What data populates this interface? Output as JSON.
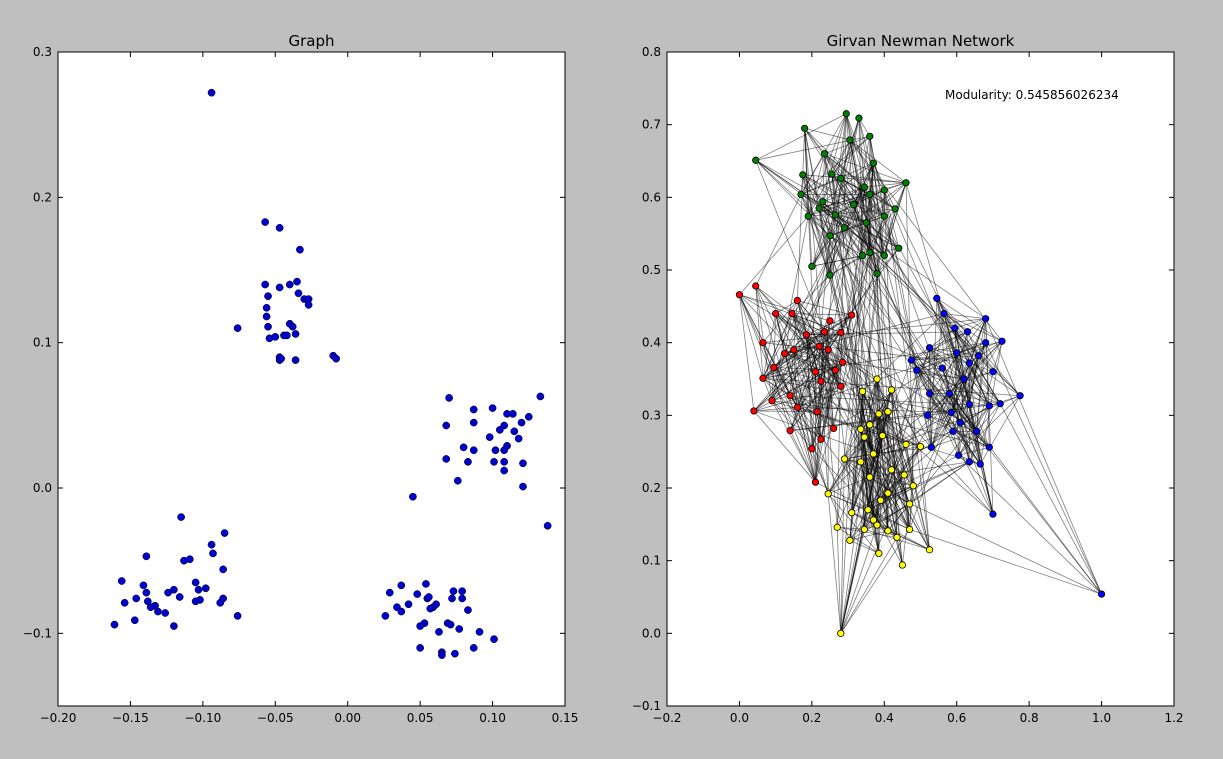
{
  "chart_data": [
    {
      "type": "scatter",
      "title": "Graph",
      "xlabel": "",
      "ylabel": "",
      "xlim": [
        -0.2,
        0.15
      ],
      "ylim": [
        -0.15,
        0.3
      ],
      "xticks": [
        -0.2,
        -0.15,
        -0.1,
        -0.05,
        0.0,
        0.05,
        0.1,
        0.15
      ],
      "xtick_labels": [
        "−0.20",
        "−0.15",
        "−0.10",
        "−0.05",
        "0.00",
        "0.05",
        "0.10",
        "0.15"
      ],
      "yticks": [
        -0.1,
        0.0,
        0.1,
        0.2,
        0.3
      ],
      "ytick_labels": [
        "−0.1",
        "0.0",
        "0.1",
        "0.2",
        "0.3"
      ],
      "grid": false,
      "point_color": "#0000cc",
      "points": [
        [
          -0.094,
          0.272
        ],
        [
          -0.057,
          0.183
        ],
        [
          -0.047,
          0.179
        ],
        [
          -0.033,
          0.164
        ],
        [
          -0.057,
          0.14
        ],
        [
          -0.047,
          0.138
        ],
        [
          -0.04,
          0.14
        ],
        [
          -0.035,
          0.142
        ],
        [
          -0.055,
          0.132
        ],
        [
          -0.034,
          0.134
        ],
        [
          -0.03,
          0.13
        ],
        [
          -0.027,
          0.13
        ],
        [
          -0.056,
          0.124
        ],
        [
          -0.056,
          0.118
        ],
        [
          -0.027,
          0.126
        ],
        [
          -0.076,
          0.11
        ],
        [
          -0.055,
          0.111
        ],
        [
          -0.04,
          0.113
        ],
        [
          -0.038,
          0.111
        ],
        [
          -0.044,
          0.105
        ],
        [
          -0.042,
          0.105
        ],
        [
          -0.036,
          0.106
        ],
        [
          -0.054,
          0.103
        ],
        [
          -0.05,
          0.104
        ],
        [
          -0.047,
          0.09
        ],
        [
          -0.047,
          0.088
        ],
        [
          -0.046,
          0.089
        ],
        [
          -0.036,
          0.088
        ],
        [
          -0.01,
          0.091
        ],
        [
          -0.008,
          0.089
        ],
        [
          0.07,
          0.062
        ],
        [
          0.1,
          0.055
        ],
        [
          0.087,
          0.054
        ],
        [
          0.133,
          0.063
        ],
        [
          0.11,
          0.051
        ],
        [
          0.114,
          0.051
        ],
        [
          0.125,
          0.049
        ],
        [
          0.087,
          0.045
        ],
        [
          0.12,
          0.045
        ],
        [
          0.068,
          0.043
        ],
        [
          0.108,
          0.043
        ],
        [
          0.105,
          0.04
        ],
        [
          0.115,
          0.039
        ],
        [
          0.098,
          0.035
        ],
        [
          0.118,
          0.034
        ],
        [
          0.11,
          0.029
        ],
        [
          0.08,
          0.028
        ],
        [
          0.087,
          0.026
        ],
        [
          0.102,
          0.026
        ],
        [
          0.108,
          0.026
        ],
        [
          0.068,
          0.02
        ],
        [
          0.083,
          0.018
        ],
        [
          0.101,
          0.018
        ],
        [
          0.108,
          0.018
        ],
        [
          0.121,
          0.017
        ],
        [
          0.108,
          0.012
        ],
        [
          0.076,
          0.005
        ],
        [
          0.121,
          0.001
        ],
        [
          0.045,
          -0.006
        ],
        [
          0.138,
          -0.026
        ],
        [
          -0.115,
          -0.02
        ],
        [
          -0.085,
          -0.031
        ],
        [
          -0.094,
          -0.039
        ],
        [
          -0.093,
          -0.045
        ],
        [
          -0.139,
          -0.047
        ],
        [
          -0.113,
          -0.05
        ],
        [
          -0.109,
          -0.049
        ],
        [
          -0.086,
          -0.056
        ],
        [
          -0.156,
          -0.064
        ],
        [
          -0.105,
          -0.065
        ],
        [
          -0.141,
          -0.067
        ],
        [
          -0.098,
          -0.069
        ],
        [
          -0.103,
          -0.07
        ],
        [
          -0.12,
          -0.07
        ],
        [
          -0.124,
          -0.072
        ],
        [
          -0.139,
          -0.072
        ],
        [
          -0.116,
          -0.075
        ],
        [
          -0.146,
          -0.076
        ],
        [
          -0.086,
          -0.076
        ],
        [
          -0.102,
          -0.077
        ],
        [
          -0.154,
          -0.079
        ],
        [
          -0.138,
          -0.078
        ],
        [
          -0.105,
          -0.078
        ],
        [
          -0.088,
          -0.079
        ],
        [
          -0.133,
          -0.081
        ],
        [
          -0.136,
          -0.082
        ],
        [
          -0.131,
          -0.085
        ],
        [
          -0.126,
          -0.086
        ],
        [
          -0.076,
          -0.088
        ],
        [
          -0.147,
          -0.091
        ],
        [
          -0.161,
          -0.094
        ],
        [
          -0.12,
          -0.095
        ],
        [
          0.054,
          -0.066
        ],
        [
          0.037,
          -0.067
        ],
        [
          0.073,
          -0.071
        ],
        [
          0.079,
          -0.071
        ],
        [
          0.029,
          -0.072
        ],
        [
          0.048,
          -0.073
        ],
        [
          0.055,
          -0.076
        ],
        [
          0.072,
          -0.076
        ],
        [
          0.079,
          -0.076
        ],
        [
          0.056,
          -0.075
        ],
        [
          0.042,
          -0.08
        ],
        [
          0.061,
          -0.08
        ],
        [
          0.059,
          -0.082
        ],
        [
          0.057,
          -0.083
        ],
        [
          0.034,
          -0.082
        ],
        [
          0.037,
          -0.085
        ],
        [
          0.083,
          -0.084
        ],
        [
          0.026,
          -0.088
        ],
        [
          0.069,
          -0.093
        ],
        [
          0.071,
          -0.094
        ],
        [
          0.053,
          -0.093
        ],
        [
          0.05,
          -0.095
        ],
        [
          0.077,
          -0.097
        ],
        [
          0.063,
          -0.099
        ],
        [
          0.091,
          -0.099
        ],
        [
          0.101,
          -0.104
        ],
        [
          0.05,
          -0.11
        ],
        [
          0.087,
          -0.11
        ],
        [
          0.065,
          -0.113
        ],
        [
          0.065,
          -0.115
        ],
        [
          0.074,
          -0.114
        ]
      ]
    },
    {
      "type": "scatter",
      "title": "Girvan Newman Network",
      "xlabel": "",
      "ylabel": "",
      "xlim": [
        -0.2,
        1.2
      ],
      "ylim": [
        -0.1,
        0.8
      ],
      "xticks": [
        -0.2,
        0.0,
        0.2,
        0.4,
        0.6,
        0.8,
        1.0,
        1.2
      ],
      "xtick_labels": [
        "−0.2",
        "0.0",
        "0.2",
        "0.4",
        "0.6",
        "0.8",
        "1.0",
        "1.2"
      ],
      "yticks": [
        -0.1,
        0.0,
        0.1,
        0.2,
        0.3,
        0.4,
        0.5,
        0.6,
        0.7,
        0.8
      ],
      "ytick_labels": [
        "−0.1",
        "0.0",
        "0.1",
        "0.2",
        "0.3",
        "0.4",
        "0.5",
        "0.6",
        "0.7",
        "0.8"
      ],
      "grid": false,
      "annotation": "Modularity: 0.545856026234",
      "edge_color": "#000000",
      "communities": [
        {
          "color": "#008000",
          "points": [
            [
              0.295,
              0.715
            ],
            [
              0.33,
              0.709
            ],
            [
              0.18,
              0.695
            ],
            [
              0.36,
              0.684
            ],
            [
              0.305,
              0.679
            ],
            [
              0.37,
              0.647
            ],
            [
              0.235,
              0.66
            ],
            [
              0.045,
              0.651
            ],
            [
              0.255,
              0.632
            ],
            [
              0.175,
              0.631
            ],
            [
              0.28,
              0.626
            ],
            [
              0.46,
              0.62
            ],
            [
              0.345,
              0.614
            ],
            [
              0.4,
              0.61
            ],
            [
              0.17,
              0.604
            ],
            [
              0.36,
              0.604
            ],
            [
              0.23,
              0.594
            ],
            [
              0.315,
              0.59
            ],
            [
              0.22,
              0.585
            ],
            [
              0.43,
              0.584
            ],
            [
              0.265,
              0.576
            ],
            [
              0.19,
              0.574
            ],
            [
              0.4,
              0.574
            ],
            [
              0.35,
              0.565
            ],
            [
              0.29,
              0.558
            ],
            [
              0.25,
              0.547
            ],
            [
              0.44,
              0.53
            ],
            [
              0.36,
              0.524
            ],
            [
              0.34,
              0.52
            ],
            [
              0.4,
              0.52
            ],
            [
              0.2,
              0.505
            ],
            [
              0.25,
              0.493
            ],
            [
              0.38,
              0.495
            ]
          ]
        },
        {
          "color": "#ff0000",
          "points": [
            [
              0.0,
              0.466
            ],
            [
              0.045,
              0.478
            ],
            [
              0.16,
              0.458
            ],
            [
              0.1,
              0.44
            ],
            [
              0.145,
              0.44
            ],
            [
              0.31,
              0.438
            ],
            [
              0.25,
              0.43
            ],
            [
              0.235,
              0.415
            ],
            [
              0.28,
              0.414
            ],
            [
              0.185,
              0.411
            ],
            [
              0.065,
              0.4
            ],
            [
              0.15,
              0.39
            ],
            [
              0.22,
              0.395
            ],
            [
              0.125,
              0.385
            ],
            [
              0.245,
              0.39
            ],
            [
              0.285,
              0.373
            ],
            [
              0.095,
              0.366
            ],
            [
              0.265,
              0.362
            ],
            [
              0.21,
              0.36
            ],
            [
              0.065,
              0.351
            ],
            [
              0.225,
              0.347
            ],
            [
              0.28,
              0.34
            ],
            [
              0.14,
              0.327
            ],
            [
              0.09,
              0.32
            ],
            [
              0.16,
              0.311
            ],
            [
              0.215,
              0.305
            ],
            [
              0.04,
              0.306
            ],
            [
              0.14,
              0.279
            ],
            [
              0.26,
              0.282
            ],
            [
              0.225,
              0.267
            ],
            [
              0.2,
              0.254
            ],
            [
              0.21,
              0.208
            ]
          ]
        },
        {
          "color": "#0000ff",
          "points": [
            [
              0.545,
              0.461
            ],
            [
              0.565,
              0.44
            ],
            [
              0.68,
              0.433
            ],
            [
              0.595,
              0.42
            ],
            [
              0.63,
              0.415
            ],
            [
              0.725,
              0.402
            ],
            [
              0.68,
              0.4
            ],
            [
              0.525,
              0.393
            ],
            [
              0.6,
              0.386
            ],
            [
              0.66,
              0.382
            ],
            [
              0.475,
              0.376
            ],
            [
              0.635,
              0.372
            ],
            [
              0.56,
              0.365
            ],
            [
              0.7,
              0.36
            ],
            [
              0.49,
              0.362
            ],
            [
              0.62,
              0.35
            ],
            [
              0.58,
              0.33
            ],
            [
              0.525,
              0.33
            ],
            [
              0.775,
              0.327
            ],
            [
              0.635,
              0.315
            ],
            [
              0.69,
              0.313
            ],
            [
              0.72,
              0.316
            ],
            [
              0.585,
              0.304
            ],
            [
              0.52,
              0.3
            ],
            [
              0.61,
              0.29
            ],
            [
              0.59,
              0.278
            ],
            [
              0.655,
              0.278
            ],
            [
              0.69,
              0.256
            ],
            [
              0.53,
              0.256
            ],
            [
              0.605,
              0.245
            ],
            [
              0.635,
              0.236
            ],
            [
              0.665,
              0.233
            ],
            [
              0.7,
              0.164
            ],
            [
              1.0,
              0.054
            ]
          ]
        },
        {
          "color": "#ffff00",
          "points": [
            [
              0.38,
              0.35
            ],
            [
              0.34,
              0.333
            ],
            [
              0.42,
              0.335
            ],
            [
              0.41,
              0.305
            ],
            [
              0.385,
              0.302
            ],
            [
              0.36,
              0.287
            ],
            [
              0.335,
              0.281
            ],
            [
              0.345,
              0.27
            ],
            [
              0.395,
              0.272
            ],
            [
              0.46,
              0.26
            ],
            [
              0.5,
              0.257
            ],
            [
              0.37,
              0.247
            ],
            [
              0.29,
              0.24
            ],
            [
              0.335,
              0.236
            ],
            [
              0.42,
              0.225
            ],
            [
              0.36,
              0.215
            ],
            [
              0.455,
              0.218
            ],
            [
              0.48,
              0.203
            ],
            [
              0.41,
              0.193
            ],
            [
              0.39,
              0.183
            ],
            [
              0.245,
              0.192
            ],
            [
              0.355,
              0.17
            ],
            [
              0.47,
              0.178
            ],
            [
              0.31,
              0.166
            ],
            [
              0.37,
              0.156
            ],
            [
              0.27,
              0.146
            ],
            [
              0.345,
              0.143
            ],
            [
              0.38,
              0.149
            ],
            [
              0.41,
              0.141
            ],
            [
              0.435,
              0.132
            ],
            [
              0.47,
              0.143
            ],
            [
              0.305,
              0.128
            ],
            [
              0.385,
              0.11
            ],
            [
              0.525,
              0.115
            ],
            [
              0.45,
              0.094
            ],
            [
              0.28,
              0.0
            ]
          ]
        }
      ]
    }
  ]
}
